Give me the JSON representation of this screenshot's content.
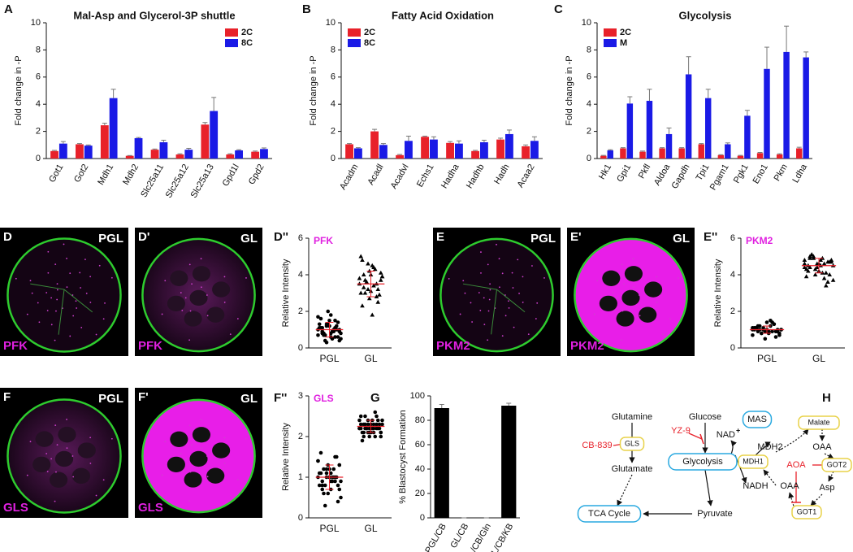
{
  "chart_data": [
    {
      "type": "bar",
      "panel": "A",
      "title": "Mal-Asp and Glycerol-3P shuttle",
      "ylabel": "Fold change in -P",
      "categories": [
        "Got1",
        "Got2",
        "Mdh1",
        "Mdh2",
        "Slc25a11",
        "Slc25a12",
        "Slc25a13",
        "Gpd1l",
        "Gpd2"
      ],
      "series": [
        {
          "name": "2C",
          "color": "#e8212a",
          "values": [
            0.55,
            1.05,
            2.45,
            0.2,
            0.65,
            0.3,
            2.5,
            0.3,
            0.5
          ],
          "errors": [
            0.05,
            0.05,
            0.15,
            0.02,
            0.05,
            0.05,
            0.15,
            0.05,
            0.05
          ]
        },
        {
          "name": "8C",
          "color": "#1a1ae6",
          "values": [
            1.1,
            0.95,
            4.45,
            1.5,
            1.2,
            0.65,
            3.5,
            0.6,
            0.7
          ],
          "errors": [
            0.15,
            0.05,
            0.65,
            0.05,
            0.15,
            0.1,
            1.0,
            0.05,
            0.08
          ]
        }
      ],
      "ylim": [
        0,
        10
      ],
      "yticks": [
        0,
        2,
        4,
        6,
        8,
        10
      ],
      "legend": "upper right"
    },
    {
      "type": "bar",
      "panel": "B",
      "title": "Fatty Acid Oxidation",
      "ylabel": "Fold change in -P",
      "categories": [
        "Acadm",
        "Acadl",
        "Acadvl",
        "Echs1",
        "Hadha",
        "Hadhb",
        "Hadh",
        "Acaa2"
      ],
      "series": [
        {
          "name": "2C",
          "color": "#e8212a",
          "values": [
            1.05,
            2.0,
            0.25,
            1.6,
            1.15,
            0.55,
            1.4,
            0.9
          ],
          "errors": [
            0.05,
            0.15,
            0.05,
            0.05,
            0.1,
            0.05,
            0.1,
            0.1
          ]
        },
        {
          "name": "8C",
          "color": "#1a1ae6",
          "values": [
            0.75,
            1.0,
            1.3,
            1.4,
            1.1,
            1.2,
            1.8,
            1.3
          ],
          "errors": [
            0.05,
            0.1,
            0.35,
            0.2,
            0.2,
            0.15,
            0.3,
            0.3
          ]
        }
      ],
      "ylim": [
        0,
        10
      ],
      "yticks": [
        0,
        2,
        4,
        6,
        8,
        10
      ],
      "legend": "upper left"
    },
    {
      "type": "bar",
      "panel": "C",
      "title": "Glycolysis",
      "ylabel": "Fold change in -P",
      "categories": [
        "Hk1",
        "Gpi1",
        "Pkfl",
        "Aldoa",
        "Gapdh",
        "Tpi1",
        "Pgam1",
        "Pgk1",
        "Eno1",
        "Pkm",
        "Ldha"
      ],
      "series": [
        {
          "name": "2C",
          "color": "#e8212a",
          "values": [
            0.2,
            0.75,
            0.5,
            0.75,
            0.75,
            1.05,
            0.25,
            0.2,
            0.4,
            0.3,
            0.75
          ],
          "errors": [
            0.03,
            0.05,
            0.05,
            0.05,
            0.05,
            0.05,
            0.03,
            0.03,
            0.05,
            0.05,
            0.08
          ]
        },
        {
          "name": "M",
          "color": "#1a1ae6",
          "values": [
            0.6,
            4.05,
            4.25,
            1.8,
            6.2,
            4.45,
            1.05,
            3.15,
            6.6,
            7.85,
            7.45
          ],
          "errors": [
            0.05,
            0.5,
            0.85,
            0.45,
            1.3,
            0.65,
            0.1,
            0.4,
            1.6,
            1.9,
            0.4
          ]
        }
      ],
      "ylim": [
        0,
        10
      ],
      "yticks": [
        0,
        2,
        4,
        6,
        8,
        10
      ],
      "legend": "upper left"
    },
    {
      "type": "strip",
      "panel": "D''",
      "title": "PFK",
      "title_color": "#e020e0",
      "ylabel": "Relative Intensity",
      "categories": [
        "PGL",
        "GL"
      ],
      "markers": [
        "circle",
        "triangle"
      ],
      "color": "#000000",
      "summary_color": "#e8212a",
      "values": [
        [
          1.0,
          0.8,
          1.2,
          0.6,
          1.5,
          0.9,
          1.1,
          0.7,
          1.3,
          0.5,
          1.0,
          0.8,
          1.6,
          0.4,
          1.2,
          0.9,
          1.4,
          0.7,
          1.1,
          0.3,
          1.8,
          0.6,
          1.0,
          1.3,
          0.8,
          2.0,
          0.9,
          1.2,
          0.5,
          1.1,
          0.7,
          1.5,
          1.0,
          0.6,
          1.7,
          0.9,
          1.3,
          0.8,
          1.1,
          0.4
        ],
        [
          3.5,
          4.0,
          3.2,
          4.5,
          2.8,
          3.7,
          5.0,
          3.0,
          4.2,
          3.4,
          2.5,
          3.9,
          4.8,
          3.6,
          3.1,
          4.3,
          2.9,
          3.8,
          3.3,
          4.6,
          1.8,
          3.5,
          4.1,
          3.0,
          3.7,
          2.7,
          4.4,
          3.2,
          3.9,
          2.3,
          3.6,
          4.0
        ]
      ],
      "summary": [
        {
          "mean": 1.0,
          "sd": 0.4
        },
        {
          "mean": 3.5,
          "sd": 0.7
        }
      ],
      "ylim": [
        0,
        6
      ],
      "yticks": [
        0,
        2,
        4,
        6
      ]
    },
    {
      "type": "strip",
      "panel": "E''",
      "title": "PKM2",
      "title_color": "#e020e0",
      "ylabel": "Relative Intensity",
      "categories": [
        "PGL",
        "GL"
      ],
      "markers": [
        "circle",
        "triangle"
      ],
      "color": "#000000",
      "summary_color": "#e8212a",
      "values": [
        [
          1.0,
          0.9,
          1.1,
          0.8,
          1.3,
          0.7,
          1.0,
          1.2,
          0.9,
          1.5,
          0.6,
          1.0,
          1.1,
          0.8,
          1.4,
          0.9,
          1.0,
          0.7,
          1.2,
          1.0,
          0.9,
          1.3,
          0.8,
          1.1,
          1.0,
          0.5,
          1.2,
          0.9,
          1.0,
          1.1,
          0.8,
          1.0,
          1.4,
          0.9,
          1.1,
          1.0
        ],
        [
          4.6,
          5.0,
          4.3,
          4.8,
          4.1,
          4.7,
          3.9,
          5.1,
          4.4,
          4.9,
          3.6,
          4.5,
          4.2,
          5.0,
          4.6,
          3.8,
          4.7,
          4.4,
          4.9,
          4.0,
          4.5,
          3.4,
          4.8,
          4.3,
          5.1,
          4.6,
          4.1,
          4.7,
          3.7,
          4.5,
          4.9,
          4.2,
          4.6,
          4.0,
          4.8,
          4.4
        ]
      ],
      "summary": [
        {
          "mean": 1.0,
          "sd": 0.2
        },
        {
          "mean": 4.5,
          "sd": 0.4
        }
      ],
      "ylim": [
        0,
        6
      ],
      "yticks": [
        0,
        2,
        4,
        6
      ]
    },
    {
      "type": "strip",
      "panel": "F''",
      "title": "GLS",
      "title_color": "#e020e0",
      "ylabel": "Relative Intensity",
      "categories": [
        "PGL",
        "GL"
      ],
      "markers": [
        "circle",
        "circle"
      ],
      "color": "#000000",
      "summary_color": "#e8212a",
      "values": [
        [
          1.0,
          0.8,
          1.2,
          0.9,
          1.5,
          0.7,
          1.1,
          0.6,
          1.3,
          0.9,
          1.0,
          0.5,
          1.6,
          0.8,
          1.2,
          1.0,
          0.4,
          1.4,
          0.9,
          1.1,
          0.7,
          1.0,
          1.3,
          0.8,
          1.2,
          0.6,
          1.0,
          1.5,
          0.9,
          1.1,
          0.3,
          1.0,
          1.2,
          0.8,
          1.4,
          0.7,
          1.0,
          1.1,
          0.9,
          1.3
        ],
        [
          2.2,
          2.3,
          2.1,
          2.4,
          2.2,
          2.0,
          2.3,
          2.5,
          2.1,
          2.2,
          2.4,
          2.3,
          1.9,
          2.2,
          2.1,
          2.6,
          2.3,
          2.2,
          2.0,
          2.4,
          2.2,
          2.3,
          2.1,
          2.5,
          2.2,
          2.0,
          2.3,
          2.2,
          2.4,
          2.1,
          2.2,
          2.3,
          2.0,
          2.2,
          2.4,
          2.1,
          2.3,
          2.2,
          2.5,
          2.1,
          2.2,
          2.3,
          2.2,
          2.1
        ]
      ],
      "summary": [
        {
          "mean": 1.0,
          "sd": 0.3
        },
        {
          "mean": 2.25,
          "sd": 0.15
        }
      ],
      "ylim": [
        0,
        3
      ],
      "yticks": [
        0,
        1,
        2,
        3
      ]
    },
    {
      "type": "bar",
      "panel": "G",
      "ylabel": "% Blastocyst Formation",
      "categories": [
        "PGL/CB",
        "GL/CB",
        "GL/CB/Gln",
        "GL/CB/KB"
      ],
      "values": [
        90,
        0,
        0,
        92
      ],
      "errors": [
        3,
        0,
        0,
        2
      ],
      "color": "#000000",
      "ylim": [
        0,
        100
      ],
      "yticks": [
        0,
        20,
        40,
        60,
        80,
        100
      ]
    }
  ],
  "images": [
    {
      "panel": "D",
      "label": "PGL",
      "stain": "PFK",
      "signal": "sparse"
    },
    {
      "panel": "D'",
      "label": "GL",
      "stain": "PFK",
      "signal": "medium"
    },
    {
      "panel": "E",
      "label": "PGL",
      "stain": "PKM2",
      "signal": "sparse"
    },
    {
      "panel": "E'",
      "label": "GL",
      "stain": "PKM2",
      "signal": "dense"
    },
    {
      "panel": "F",
      "label": "PGL",
      "stain": "GLS",
      "signal": "medium"
    },
    {
      "panel": "F'",
      "label": "GL",
      "stain": "GLS",
      "signal": "dense"
    }
  ],
  "diagram": {
    "panel": "H",
    "nodes": [
      {
        "label": "Glutamine"
      },
      {
        "label": "GLS"
      },
      {
        "label": "CB-839"
      },
      {
        "label": "Glutamate"
      },
      {
        "label": "TCA Cycle"
      },
      {
        "label": "Glucose"
      },
      {
        "label": "YZ-9"
      },
      {
        "label": "NAD",
        "sup": "+"
      },
      {
        "label": "Glycolysis"
      },
      {
        "label": "MDH1"
      },
      {
        "label": "NADH"
      },
      {
        "label": "Pyruvate"
      },
      {
        "label": "MAS"
      },
      {
        "label": "MDH2"
      },
      {
        "label": "Malate"
      },
      {
        "label": "OAA"
      },
      {
        "label": "AOA"
      },
      {
        "label": "GOT2"
      },
      {
        "label": "Asp"
      },
      {
        "label": "GOT1"
      },
      {
        "label": "OAA"
      }
    ]
  }
}
